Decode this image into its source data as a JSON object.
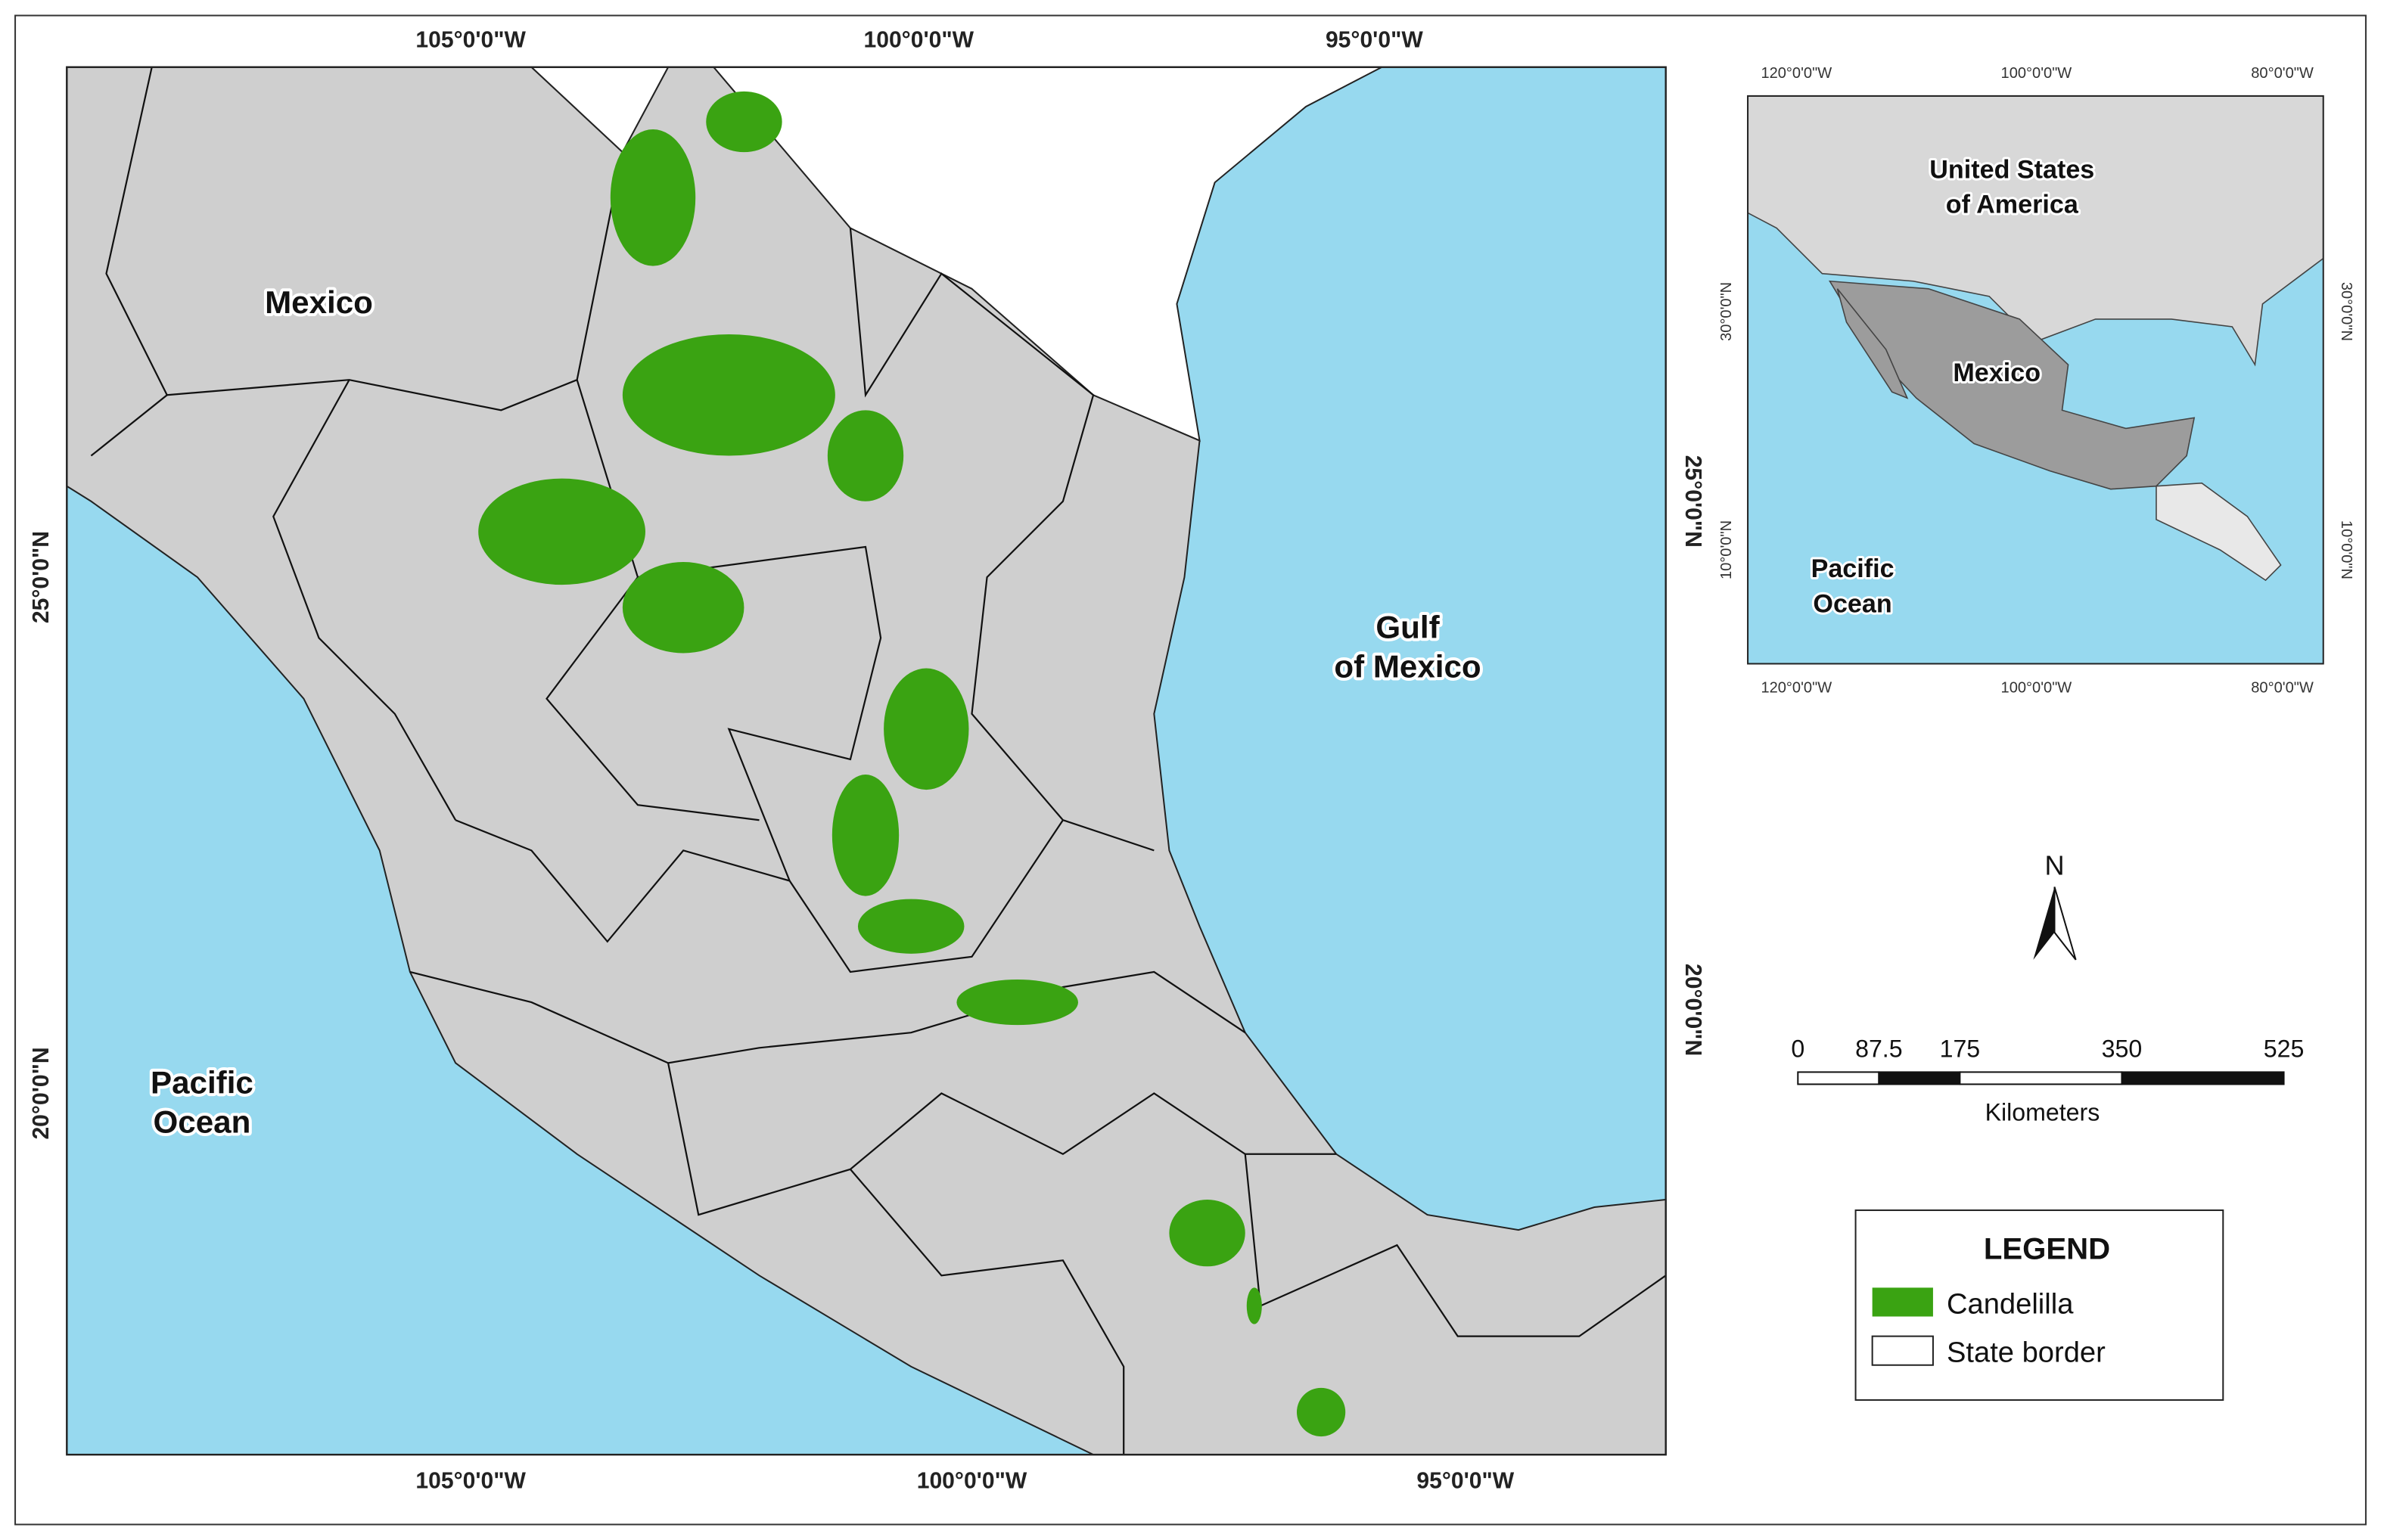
{
  "main_map": {
    "top_labels": [
      "105°0'0\"W",
      "100°0'0\"W",
      "95°0'0\"W"
    ],
    "bottom_labels": [
      "105°0'0\"W",
      "100°0'0\"W",
      "95°0'0\"W"
    ],
    "left_labels": [
      "25°0'0\"N",
      "20°0'0\"N"
    ],
    "right_labels": [
      "25°0'0\"N",
      "20°0'0\"N"
    ],
    "mexico": "Mexico",
    "pacific": [
      "Pacific",
      "Ocean"
    ],
    "gulf": [
      "Gulf",
      "of Mexico"
    ]
  },
  "inset_map": {
    "top_labels": [
      "120°0'0\"W",
      "100°0'0\"W",
      "80°0'0\"W"
    ],
    "bottom_labels": [
      "120°0'0\"W",
      "100°0'0\"W",
      "80°0'0\"W"
    ],
    "left_labels": [
      "30°0'0\"N",
      "10°0'0\"N"
    ],
    "right_labels": [
      "30°0'0\"N",
      "10°0'0\"N"
    ],
    "usa": [
      "United States",
      "of America"
    ],
    "mexico": "Mexico",
    "pacific": [
      "Pacific",
      "Ocean"
    ]
  },
  "north_arrow": "N",
  "scale_bar": {
    "values": [
      0,
      87.5,
      175,
      350,
      525
    ],
    "unit": "Kilometers"
  },
  "legend": {
    "title": "LEGEND",
    "items": [
      "Candelilla",
      "State border"
    ]
  }
}
